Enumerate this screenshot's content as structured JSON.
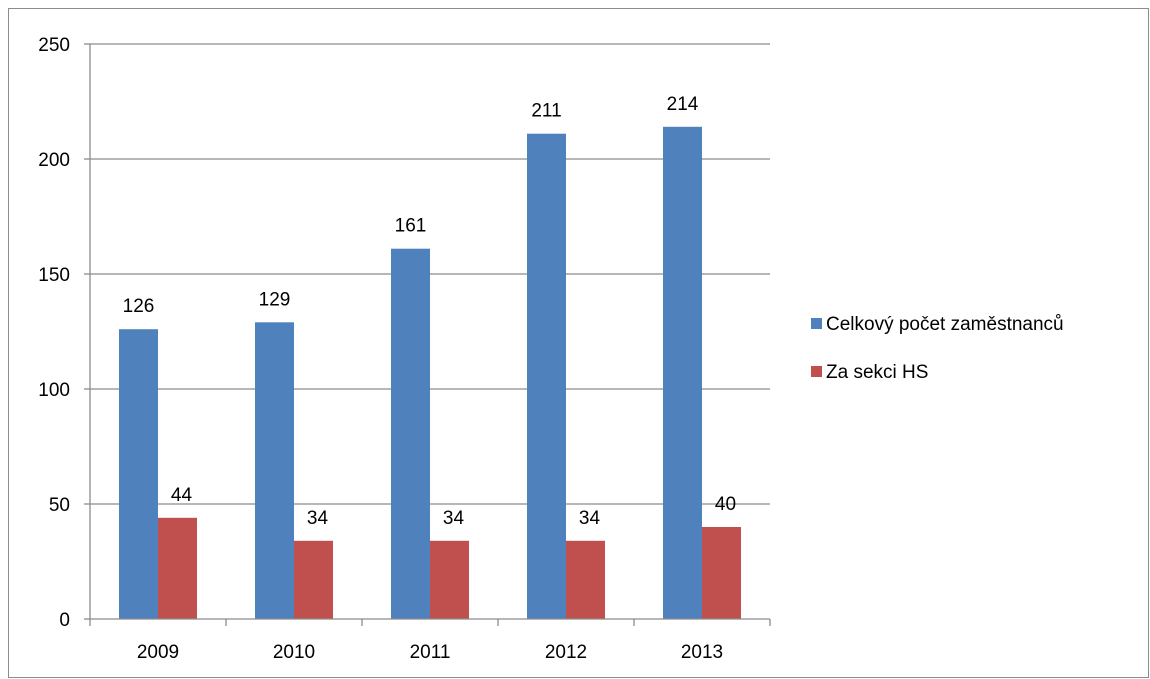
{
  "chart_data": {
    "type": "bar",
    "categories": [
      "2009",
      "2010",
      "2011",
      "2012",
      "2013"
    ],
    "series": [
      {
        "name": "Celkový počet zaměstnanců",
        "color": "#4f81bd",
        "values": [
          126,
          129,
          161,
          211,
          214
        ]
      },
      {
        "name": "Za sekci HS",
        "color": "#c0504d",
        "values": [
          44,
          34,
          34,
          34,
          40
        ]
      }
    ],
    "title": "",
    "xlabel": "",
    "ylabel": "",
    "ylim": [
      0,
      250
    ],
    "yticks": [
      0,
      50,
      100,
      150,
      200,
      250
    ],
    "grid": true,
    "legend_position": "right",
    "data_labels": true
  }
}
